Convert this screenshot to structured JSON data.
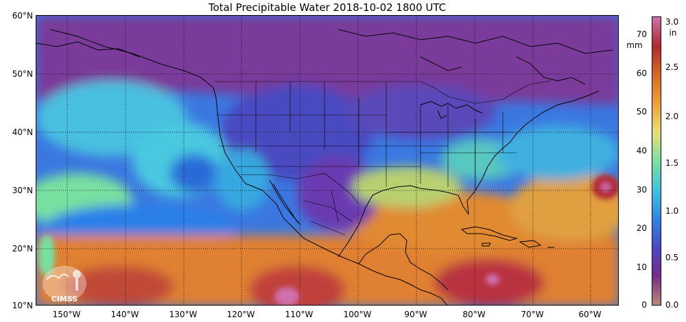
{
  "title": "Total Precipitable Water  2018-10-02 1800 UTC",
  "lat_labels": [
    "60°N",
    "50°N",
    "40°N",
    "30°N",
    "20°N",
    "10°N"
  ],
  "lon_labels": [
    "150°W",
    "140°W",
    "130°W",
    "120°W",
    "110°W",
    "100°W",
    "90°W",
    "80°W",
    "70°W",
    "60°W"
  ],
  "colorbar": {
    "unit_mm": "mm",
    "unit_in": "in",
    "mm_ticks": [
      "70",
      "60",
      "50",
      "40",
      "30",
      "20",
      "10",
      "0"
    ],
    "in_ticks": [
      "3.0",
      "2.5",
      "2.0",
      "1.5",
      "1.0",
      "0.5",
      "0.0"
    ],
    "colors": [
      "#b88a7a",
      "#7a2a8a",
      "#4a48c8",
      "#2a88e8",
      "#38c8e0",
      "#7ae0a0",
      "#e8e070",
      "#f0a030",
      "#d86a20",
      "#b02830",
      "#d070b0"
    ]
  },
  "logo": {
    "text": "CIMSS"
  }
}
